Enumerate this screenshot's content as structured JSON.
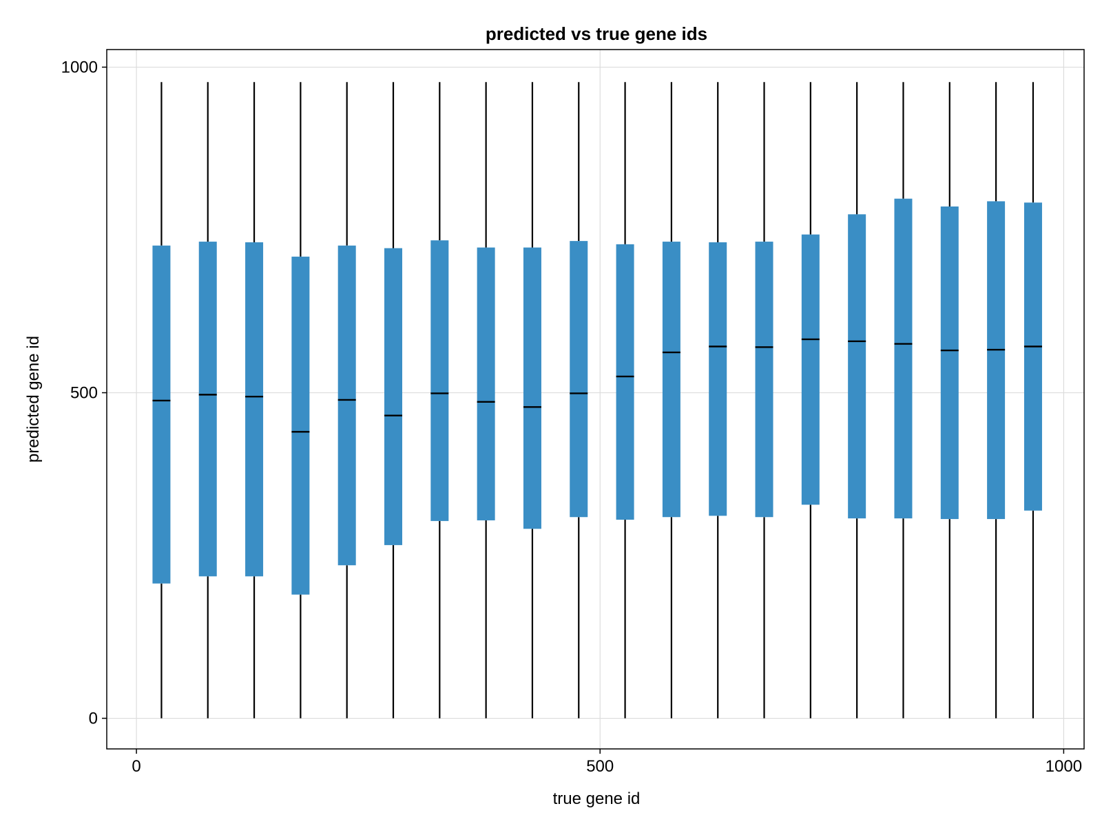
{
  "chart_data": {
    "type": "box",
    "title": "predicted vs true gene ids",
    "xlabel": "true gene id",
    "ylabel": "predicted gene id",
    "xlim": [
      -32,
      1022
    ],
    "ylim": [
      -47,
      1027
    ],
    "xticks": [
      0,
      500,
      1000
    ],
    "yticks": [
      0,
      500,
      1000
    ],
    "grid": true,
    "box_color": "#3a8ec5",
    "series": [
      {
        "x": 27,
        "min": 0,
        "q1": 207,
        "median": 488,
        "q3": 726,
        "max": 977
      },
      {
        "x": 77,
        "min": 0,
        "q1": 218,
        "median": 497,
        "q3": 732,
        "max": 977
      },
      {
        "x": 127,
        "min": 0,
        "q1": 218,
        "median": 494,
        "q3": 731,
        "max": 977
      },
      {
        "x": 177,
        "min": 0,
        "q1": 190,
        "median": 440,
        "q3": 709,
        "max": 977
      },
      {
        "x": 227,
        "min": 0,
        "q1": 235,
        "median": 489,
        "q3": 726,
        "max": 977
      },
      {
        "x": 277,
        "min": 0,
        "q1": 266,
        "median": 465,
        "q3": 722,
        "max": 977
      },
      {
        "x": 327,
        "min": 0,
        "q1": 303,
        "median": 499,
        "q3": 734,
        "max": 977
      },
      {
        "x": 377,
        "min": 0,
        "q1": 304,
        "median": 486,
        "q3": 723,
        "max": 977
      },
      {
        "x": 427,
        "min": 0,
        "q1": 291,
        "median": 478,
        "q3": 723,
        "max": 977
      },
      {
        "x": 477,
        "min": 0,
        "q1": 309,
        "median": 499,
        "q3": 733,
        "max": 977
      },
      {
        "x": 527,
        "min": 0,
        "q1": 305,
        "median": 525,
        "q3": 728,
        "max": 977
      },
      {
        "x": 577,
        "min": 0,
        "q1": 309,
        "median": 562,
        "q3": 732,
        "max": 977
      },
      {
        "x": 627,
        "min": 0,
        "q1": 311,
        "median": 571,
        "q3": 731,
        "max": 977
      },
      {
        "x": 677,
        "min": 0,
        "q1": 309,
        "median": 570,
        "q3": 732,
        "max": 977
      },
      {
        "x": 727,
        "min": 0,
        "q1": 328,
        "median": 582,
        "q3": 743,
        "max": 977
      },
      {
        "x": 777,
        "min": 0,
        "q1": 307,
        "median": 579,
        "q3": 774,
        "max": 977
      },
      {
        "x": 827,
        "min": 0,
        "q1": 307,
        "median": 575,
        "q3": 798,
        "max": 977
      },
      {
        "x": 877,
        "min": 0,
        "q1": 306,
        "median": 565,
        "q3": 786,
        "max": 977
      },
      {
        "x": 927,
        "min": 0,
        "q1": 306,
        "median": 566,
        "q3": 794,
        "max": 977
      },
      {
        "x": 967,
        "min": 0,
        "q1": 319,
        "median": 571,
        "q3": 792,
        "max": 977
      }
    ]
  }
}
